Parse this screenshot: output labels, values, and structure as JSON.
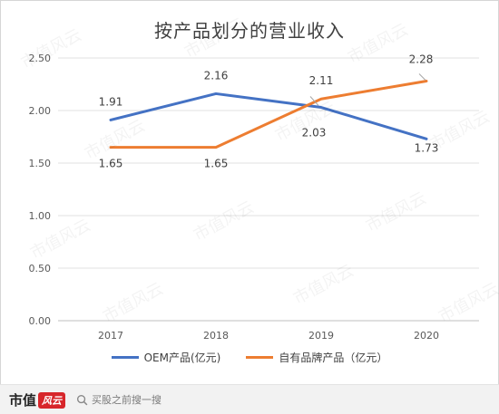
{
  "title": "按产品划分的营业收入",
  "colors": {
    "oem": "#4472c4",
    "own": "#ed7d31"
  },
  "legend": {
    "oem_label": "OEM产品(亿元)",
    "own_label": "自有品牌产品（亿元）"
  },
  "footer": {
    "brand": "市值",
    "brand_badge": "风云",
    "search_hint": "买股之前搜一搜"
  },
  "watermark": "市值风云",
  "chart_data": {
    "type": "line",
    "title": "按产品划分的营业收入",
    "categories": [
      "2017",
      "2018",
      "2019",
      "2020"
    ],
    "series": [
      {
        "name": "OEM产品(亿元)",
        "values": [
          1.91,
          2.16,
          2.03,
          1.73
        ]
      },
      {
        "name": "自有品牌产品（亿元）",
        "values": [
          1.65,
          1.65,
          2.11,
          2.28
        ]
      }
    ],
    "ylim": [
      0,
      2.5
    ],
    "yticks": [
      "0.00",
      "0.50",
      "1.00",
      "1.50",
      "2.00",
      "2.50"
    ],
    "grid": true,
    "legend_position": "bottom",
    "data_labels": {
      "oem": [
        "1.91",
        "2.16",
        "2.03",
        "1.73"
      ],
      "own": [
        "1.65",
        "1.65",
        "2.11",
        "2.28"
      ]
    }
  }
}
